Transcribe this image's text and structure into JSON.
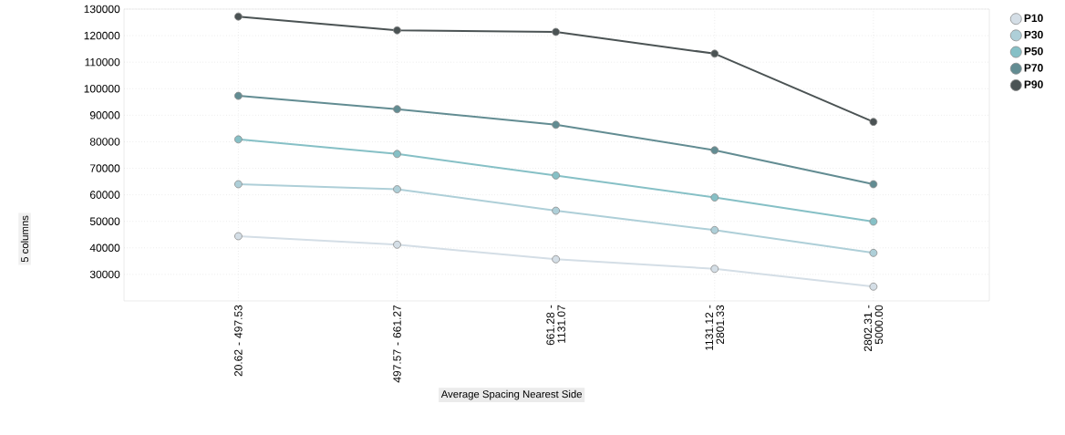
{
  "chart_data": {
    "type": "line",
    "xlabel": "Average Spacing Nearest Side",
    "categories": [
      "20.62 - 497.53",
      "497.57 - 661.27",
      "661.28 - 1131.07",
      "1131.12 - 2801.33",
      "2802.31 - 5000.00"
    ],
    "series": [
      {
        "name": "P10",
        "color": "#d4dee6",
        "values": [
          44400,
          41200,
          35700,
          32100,
          25400
        ]
      },
      {
        "name": "P30",
        "color": "#aecfd8",
        "values": [
          64000,
          62100,
          54000,
          46700,
          38100
        ]
      },
      {
        "name": "P50",
        "color": "#86c0c6",
        "values": [
          80900,
          75400,
          67300,
          59000,
          49900
        ]
      },
      {
        "name": "P70",
        "color": "#628c92",
        "values": [
          97300,
          92300,
          86400,
          76800,
          64000
        ]
      },
      {
        "name": "P90",
        "color": "#4b5354",
        "values": [
          127200,
          122000,
          121400,
          113200,
          87500
        ]
      }
    ],
    "ylim": [
      20000,
      130000
    ],
    "yticks": [
      30000,
      40000,
      50000,
      60000,
      70000,
      80000,
      90000,
      100000,
      110000,
      120000,
      130000
    ],
    "grid": true,
    "legend": "top right",
    "marker": "circle",
    "line_style": "solid",
    "annotations": [
      "5 columns"
    ]
  }
}
